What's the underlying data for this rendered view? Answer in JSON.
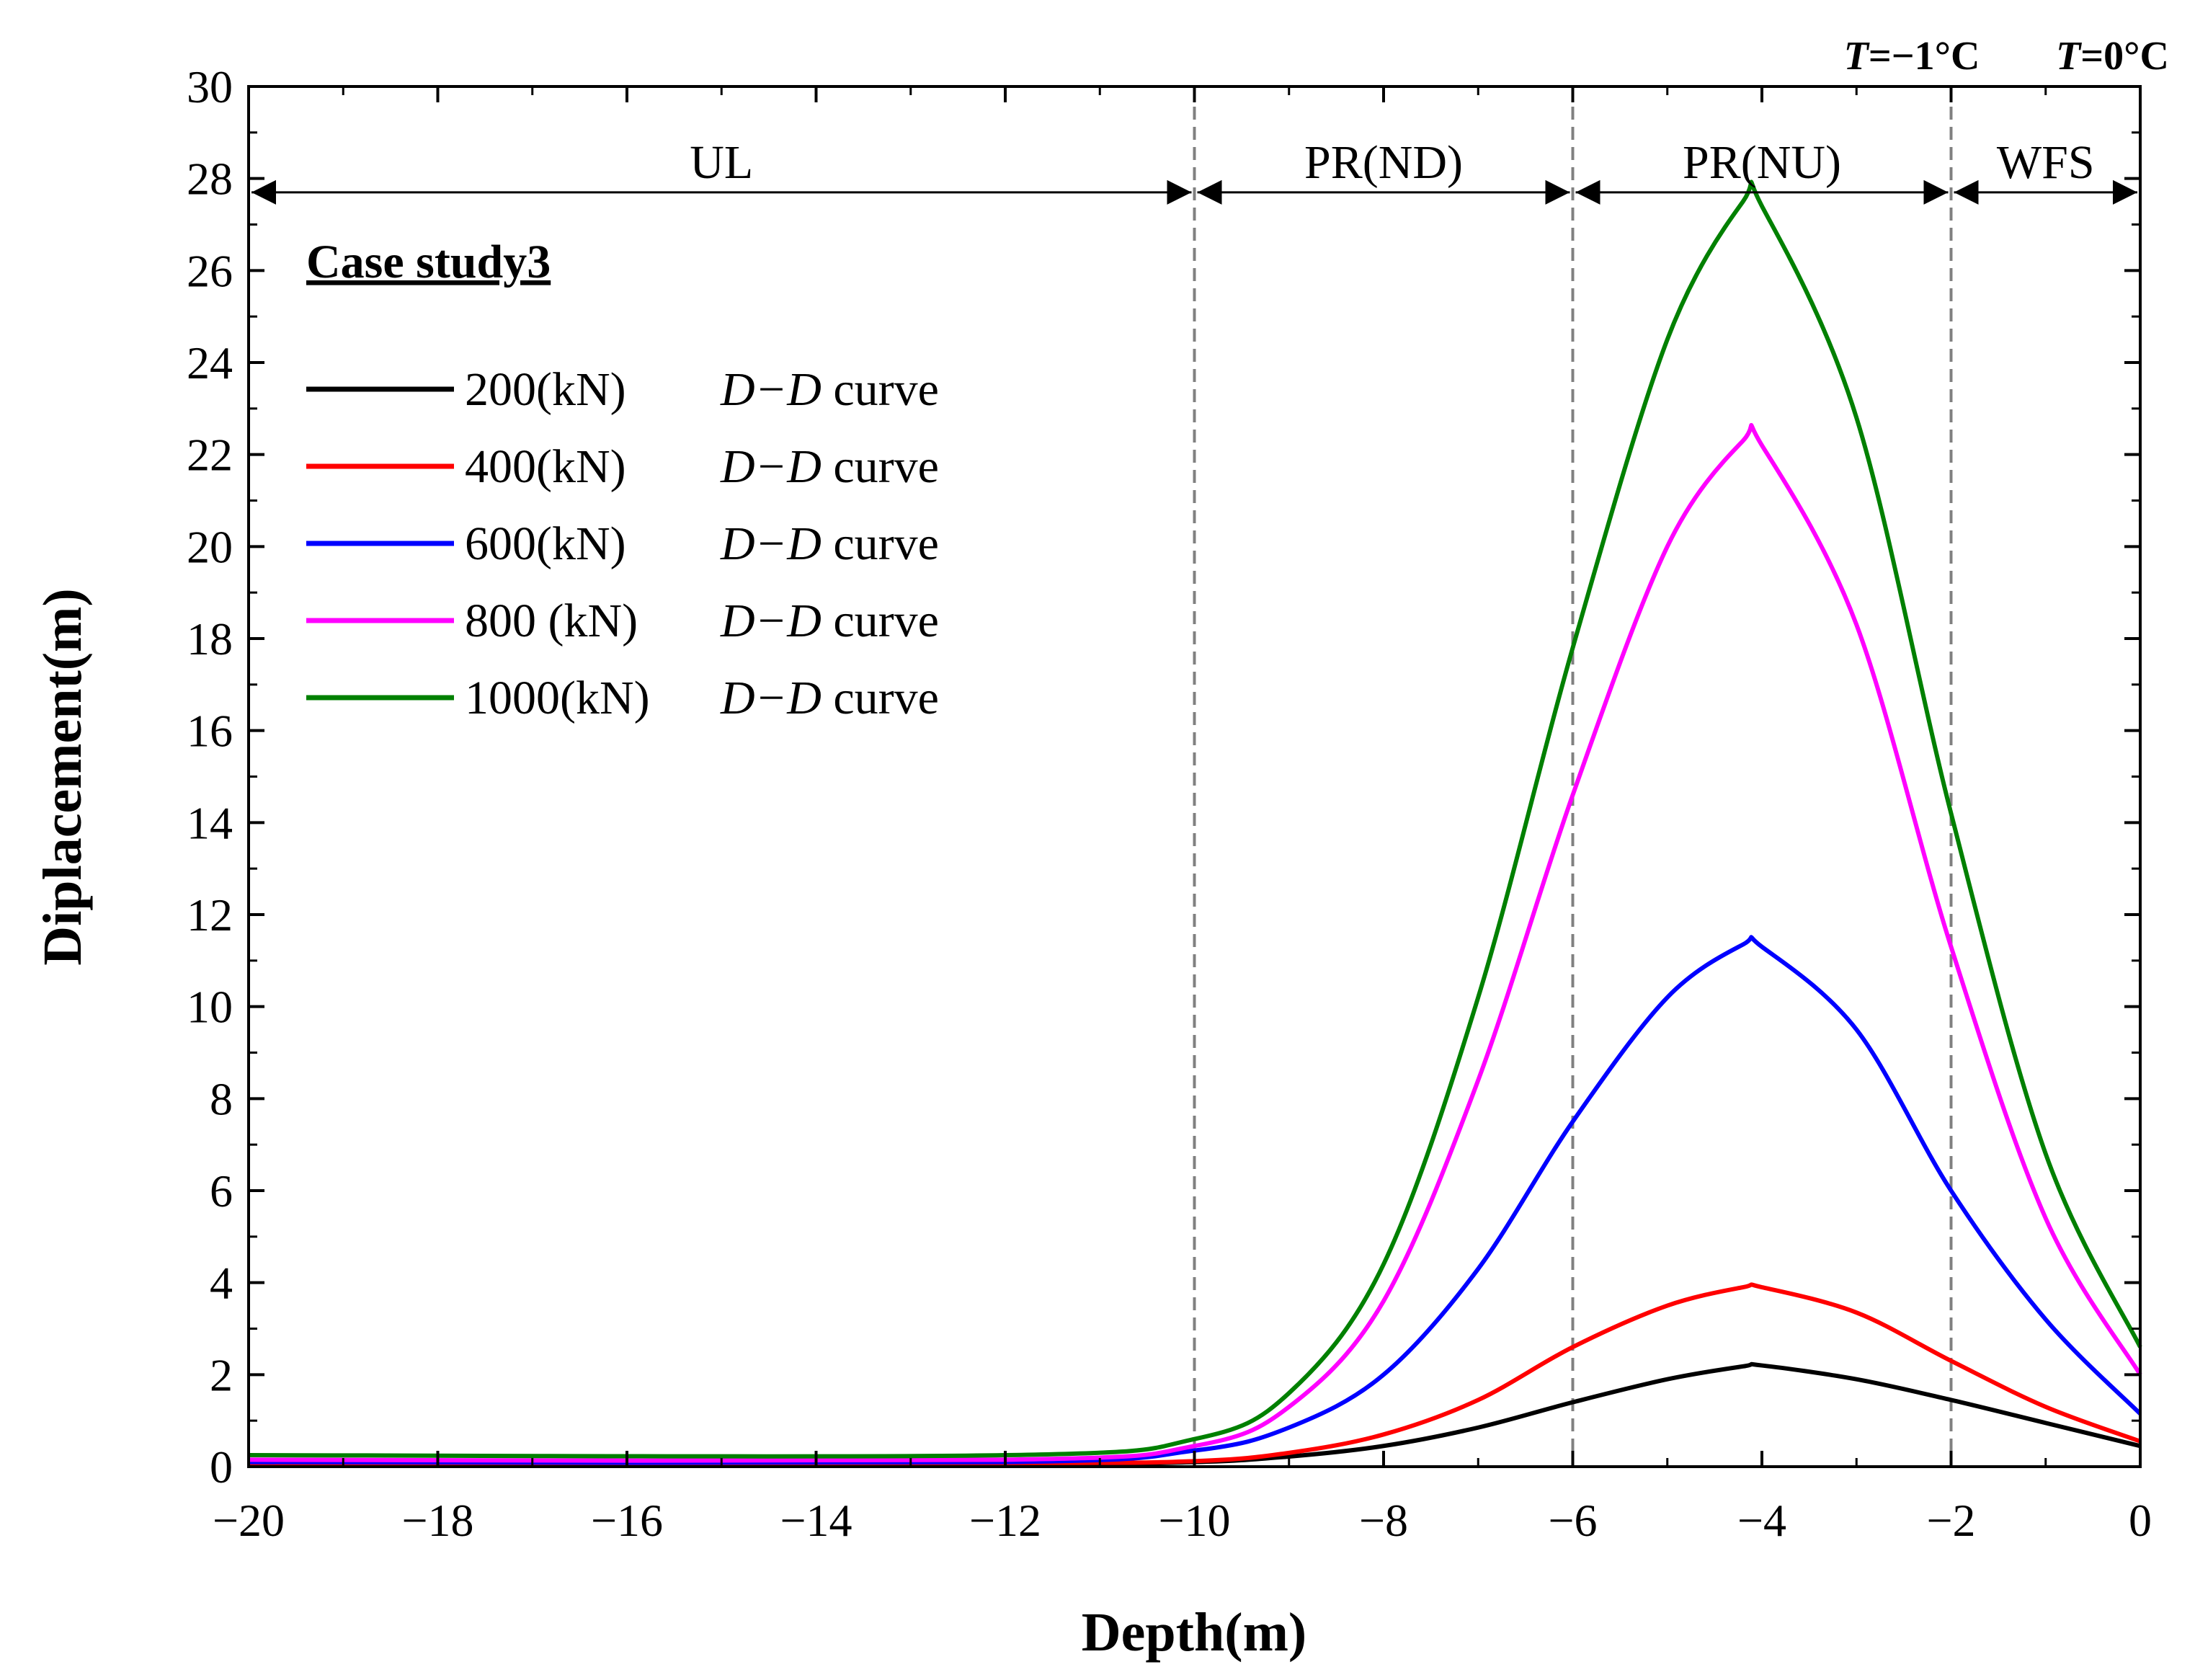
{
  "chart_data": {
    "type": "line",
    "xlabel": "Depth(m)",
    "ylabel": "Diplacement(m)",
    "xlim": [
      -20,
      0
    ],
    "ylim": [
      0,
      30
    ],
    "x_ticks": [
      "−20",
      "−18",
      "−16",
      "−14",
      "−12",
      "−10",
      "−8",
      "−6",
      "−4",
      "−2",
      "0"
    ],
    "x_tick_values": [
      -20,
      -18,
      -16,
      -14,
      -12,
      -10,
      -8,
      -6,
      -4,
      -2,
      0
    ],
    "y_ticks": [
      "0",
      "2",
      "4",
      "6",
      "8",
      "10",
      "12",
      "14",
      "16",
      "18",
      "20",
      "22",
      "24",
      "26",
      "28",
      "30"
    ],
    "y_tick_values": [
      0,
      2,
      4,
      6,
      8,
      10,
      12,
      14,
      16,
      18,
      20,
      22,
      24,
      26,
      28,
      30
    ],
    "legend_title": "Case study3",
    "legend_position": "upper-left",
    "region_boundaries": [
      -10,
      -6,
      -2
    ],
    "regions": [
      {
        "label": "UL",
        "from": -20,
        "to": -10
      },
      {
        "label": "PR(ND)",
        "from": -10,
        "to": -6
      },
      {
        "label": "PR(NU)",
        "from": -6,
        "to": -2
      },
      {
        "label": "WFS",
        "from": -2,
        "to": 0
      }
    ],
    "temperature_labels": [
      {
        "var": "T",
        "text": "=−1°C",
        "at": -2
      },
      {
        "var": "T",
        "text": "=0°C",
        "at": 0
      }
    ],
    "series": [
      {
        "load": "200(kN)",
        "suffix_italic": "D−D",
        "suffix": " curve",
        "color": "#000000",
        "x": [
          -20,
          -12,
          -10,
          -9,
          -8,
          -7,
          -6,
          -5,
          -4.2,
          -4,
          -3,
          -2,
          -1,
          0
        ],
        "y": [
          0.05,
          0.05,
          0.1,
          0.22,
          0.45,
          0.85,
          1.4,
          1.9,
          2.18,
          2.2,
          1.9,
          1.45,
          0.95,
          0.45
        ]
      },
      {
        "load": "400(kN)",
        "suffix_italic": "D−D",
        "suffix": " curve",
        "color": "#ff0000",
        "x": [
          -20,
          -12,
          -10,
          -9,
          -8,
          -7,
          -6,
          -5,
          -4.2,
          -4,
          -3,
          -2,
          -1,
          0
        ],
        "y": [
          0.08,
          0.08,
          0.12,
          0.3,
          0.7,
          1.45,
          2.6,
          3.5,
          3.9,
          3.9,
          3.35,
          2.3,
          1.3,
          0.55
        ]
      },
      {
        "load": "600(kN)",
        "suffix_italic": "D−D",
        "suffix": " curve",
        "color": "#0000ff",
        "x": [
          -20,
          -12,
          -10,
          -9,
          -8,
          -7,
          -6,
          -5,
          -4.2,
          -4,
          -3,
          -2,
          -1,
          0
        ],
        "y": [
          0.1,
          0.1,
          0.35,
          0.85,
          2.0,
          4.3,
          7.5,
          10.2,
          11.35,
          11.3,
          9.5,
          6.0,
          3.2,
          1.15
        ]
      },
      {
        "load": "800 (kN)",
        "suffix_italic": "D−D",
        "suffix": " curve",
        "color": "#ff00ff",
        "x": [
          -20,
          -12,
          -10,
          -9,
          -8,
          -7,
          -6,
          -5,
          -4.2,
          -4,
          -3,
          -2,
          -1,
          0
        ],
        "y": [
          0.15,
          0.15,
          0.45,
          1.3,
          3.6,
          8.4,
          14.6,
          20.0,
          22.3,
          22.2,
          18.3,
          11.3,
          5.4,
          2.0
        ]
      },
      {
        "load": "1000(kN)",
        "suffix_italic": "D−D",
        "suffix": " curve",
        "color": "#008000",
        "x": [
          -20,
          -12,
          -10,
          -9,
          -8,
          -7,
          -6,
          -5,
          -4.2,
          -4,
          -3,
          -2,
          -1,
          0
        ],
        "y": [
          0.25,
          0.25,
          0.6,
          1.6,
          4.4,
          10.2,
          17.8,
          24.5,
          27.5,
          27.4,
          22.8,
          14.2,
          6.8,
          2.6
        ]
      }
    ]
  }
}
